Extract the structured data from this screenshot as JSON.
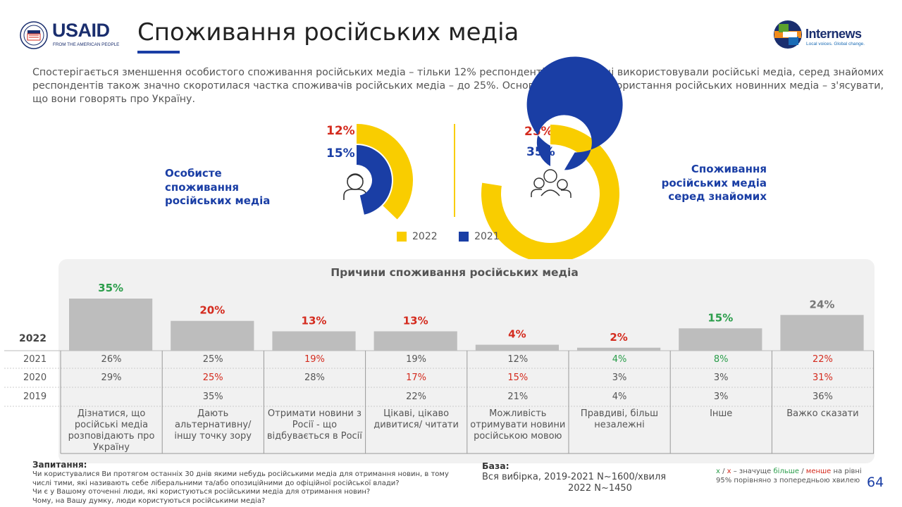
{
  "header": {
    "usaid_word": "USAID",
    "usaid_sub": "FROM THE AMERICAN PEOPLE",
    "title": "Споживання російських медіа",
    "internews_word": "Internews",
    "internews_tag": "Local voices. Global change."
  },
  "intro": "Спостерігається зменшення особистого споживання російських медіа – тільки 12% респондентів у 2022 році використовували російські медіа, серед знайомих респондентів також значно скоротилася частка споживачів російських медіа – до 25%. Основна причина використання російських новинних  медіа  – з'ясувати, що вони говорять про Україну.",
  "colors": {
    "y2022": "#f9cd00",
    "y2021": "#1a3ea5",
    "bar": "#bdbdbd",
    "green": "#2a9d4a",
    "red": "#d42b1e",
    "gray": "#777777",
    "accent_blue": "#1a3ea5"
  },
  "icons": [
    "person-icon",
    "group-icon"
  ],
  "chart_data": [
    {
      "type": "pie",
      "name": "personal",
      "label": "Особисте\nспоживання\nросійських медіа",
      "categories": [
        "2022",
        "2021"
      ],
      "values": [
        12,
        15
      ],
      "value_labels": [
        "12%",
        "15%"
      ]
    },
    {
      "type": "pie",
      "name": "acquaintances",
      "label": "Споживання\nросійських медіа\nсеред знайомих",
      "categories": [
        "2022",
        "2021"
      ],
      "values": [
        25,
        35
      ],
      "value_labels": [
        "25%",
        "35%"
      ]
    },
    {
      "type": "bar",
      "title": "Причини споживання російських медіа",
      "ylim": [
        0,
        35
      ],
      "categories": [
        "Дізнатися, що російські медіа розповідають про Україну",
        "Дають альтернативну/ іншу точку зору",
        "Отримати новини з Росії - що відбувається в Росії",
        "Цікаві, цікаво дивитися/ читати",
        "Можливість отримувати новини російською мовою",
        "Правдиві, більш незалежні",
        "Інше",
        "Важко сказати"
      ],
      "series": [
        {
          "name": "2022",
          "values": [
            35,
            20,
            13,
            13,
            4,
            2,
            15,
            24
          ],
          "labels": [
            "35%",
            "20%",
            "13%",
            "13%",
            "4%",
            "2%",
            "15%",
            "24%"
          ],
          "label_colors": [
            "green",
            "red",
            "red",
            "red",
            "red",
            "red",
            "green",
            "gray"
          ]
        }
      ],
      "table": [
        {
          "year": "2021",
          "values": [
            "26%",
            "25%",
            "19%",
            "19%",
            "12%",
            "4%",
            "8%",
            "22%"
          ],
          "colors": [
            "",
            "",
            "red",
            "",
            "",
            "green",
            "green",
            "red"
          ]
        },
        {
          "year": "2020",
          "values": [
            "29%",
            "25%",
            "28%",
            "17%",
            "15%",
            "3%",
            "3%",
            "31%"
          ],
          "colors": [
            "",
            "red",
            "",
            "red",
            "red",
            "",
            "",
            "red"
          ]
        },
        {
          "year": "2019",
          "values": [
            "",
            "35%",
            "",
            "22%",
            "21%",
            "4%",
            "3%",
            "36%"
          ],
          "colors": [
            "",
            "",
            "",
            "",
            "",
            "",
            "",
            ""
          ]
        }
      ]
    }
  ],
  "legend": [
    {
      "label": "2022",
      "color": "#f9cd00"
    },
    {
      "label": "2021",
      "color": "#1a3ea5"
    }
  ],
  "bar_year_label": "2022",
  "footer": {
    "question_head": "Запитання:",
    "question_text": "Чи користувалися Ви протягом останніх 30 днів якими небудь російськими медіа для отримання новин, в тому числі тими, які називають себе ліберальними та/або опозиційними до офіційної російської влади?\nЧи є у Вашому оточенні люди, які користуються російськими медіа для отримання новин?\nЧому, на Вашу думку, люди користуються російськими медіа?",
    "base_head": "База:",
    "base_line1": "Вся вибірка, 2019-2021  N~1600/хвиля",
    "base_line2": "2022  N~1450",
    "note_x1": "х",
    "note_sep1": " / ",
    "note_x2": "х",
    "note_mid": " – значуще ",
    "note_more": "більше",
    "note_sep2": " / ",
    "note_less": "менше",
    "note_tail": " на рівні",
    "note_line2": "95% порівняно з попередньою хвилею",
    "page_number": "64"
  }
}
